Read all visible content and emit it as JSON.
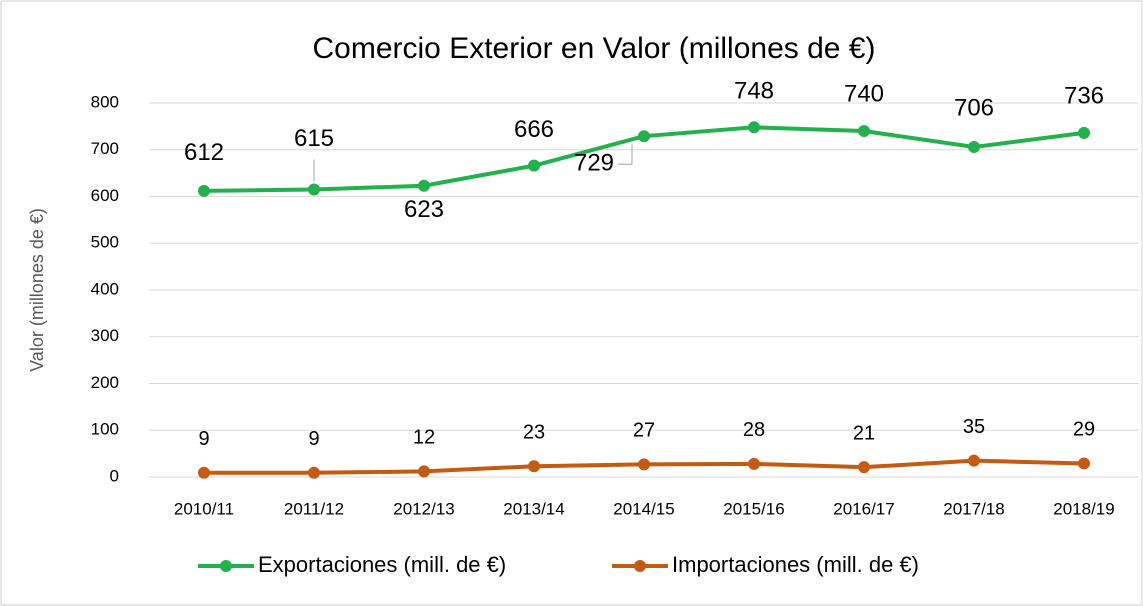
{
  "chart_data": {
    "type": "line",
    "title": "Comercio Exterior en Valor (millones de €)",
    "y_label": "Valor (millones de €)",
    "categories": [
      "2010/11",
      "2011/12",
      "2012/13",
      "2013/14",
      "2014/15",
      "2015/16",
      "2016/17",
      "2017/18",
      "2018/19"
    ],
    "series": [
      {
        "name": "Exportaciones (mill. de €)",
        "color": "#22b14c",
        "values": [
          612,
          615,
          623,
          666,
          729,
          748,
          740,
          706,
          736
        ]
      },
      {
        "name": "Importaciones (mill. de €)",
        "color": "#c55a11",
        "values": [
          9,
          9,
          12,
          23,
          27,
          28,
          21,
          35,
          29
        ]
      }
    ],
    "ylim": [
      0,
      800
    ],
    "yticks": [
      0,
      100,
      200,
      300,
      400,
      500,
      600,
      700,
      800
    ],
    "grid": true,
    "legend": "bottom"
  }
}
